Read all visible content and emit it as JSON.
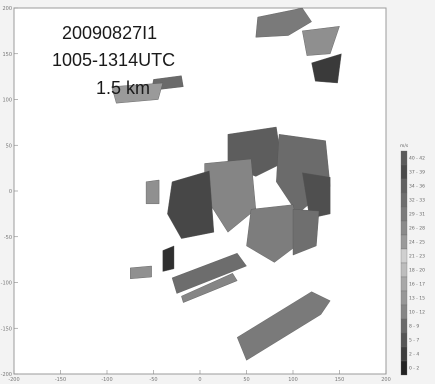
{
  "chart_data": {
    "type": "heatmap",
    "title_lines": [
      "20090827I1",
      "1005-1314UTC",
      "1.5 km"
    ],
    "xlim": [
      -200,
      200
    ],
    "ylim": [
      -200,
      200
    ],
    "x_ticks": [
      -200,
      -150,
      -100,
      -50,
      0,
      50,
      100,
      150,
      200
    ],
    "y_ticks": [
      200,
      150,
      100,
      50,
      0,
      -50,
      -100,
      -150,
      -200
    ],
    "colorbar": {
      "unit": "m/s",
      "levels": [
        "40 - 42",
        "37 - 39",
        "34 - 36",
        "32 - 33",
        "29 - 31",
        "26 - 28",
        "24 - 25",
        "21 - 23",
        "18 - 20",
        "16 - 17",
        "13 - 15",
        "10 - 12",
        "8 - 9",
        "5 - 7",
        "2 - 4",
        "0 - 2"
      ],
      "colors": [
        "#5a5a5a",
        "#4a4a4a",
        "#616161",
        "#6e6e6e",
        "#7b7b7b",
        "#8a8a8a",
        "#9a9a9a",
        "#cfcfcf",
        "#bdbdbd",
        "#a8a8a8",
        "#979797",
        "#868686",
        "#6a6a6a",
        "#555555",
        "#3d3d3d",
        "#222222"
      ]
    },
    "grid": false
  },
  "patches": [
    {
      "color": "#7a7a7a",
      "pts": [
        [
          62,
          190
        ],
        [
          110,
          200
        ],
        [
          120,
          185
        ],
        [
          95,
          170
        ],
        [
          60,
          168
        ]
      ]
    },
    {
      "color": "#8f8f8f",
      "pts": [
        [
          110,
          175
        ],
        [
          150,
          180
        ],
        [
          140,
          150
        ],
        [
          115,
          148
        ]
      ]
    },
    {
      "color": "#3a3a3a",
      "pts": [
        [
          120,
          140
        ],
        [
          152,
          150
        ],
        [
          148,
          118
        ],
        [
          124,
          120
        ]
      ]
    },
    {
      "color": "#6a6a6a",
      "pts": [
        [
          -50,
          122
        ],
        [
          -20,
          126
        ],
        [
          -18,
          114
        ],
        [
          -52,
          110
        ]
      ]
    },
    {
      "color": "#9a9a9a",
      "pts": [
        [
          -95,
          114
        ],
        [
          -40,
          118
        ],
        [
          -45,
          100
        ],
        [
          -90,
          96
        ]
      ]
    },
    {
      "color": "#5d5d5d",
      "pts": [
        [
          30,
          62
        ],
        [
          82,
          70
        ],
        [
          88,
          30
        ],
        [
          60,
          16
        ],
        [
          30,
          28
        ]
      ]
    },
    {
      "color": "#6b6b6b",
      "pts": [
        [
          85,
          62
        ],
        [
          135,
          55
        ],
        [
          140,
          5
        ],
        [
          105,
          -25
        ],
        [
          82,
          10
        ]
      ]
    },
    {
      "color": "#4f4f4f",
      "pts": [
        [
          110,
          20
        ],
        [
          140,
          15
        ],
        [
          140,
          -25
        ],
        [
          118,
          -30
        ]
      ]
    },
    {
      "color": "#858585",
      "pts": [
        [
          5,
          30
        ],
        [
          55,
          35
        ],
        [
          60,
          -20
        ],
        [
          30,
          -45
        ],
        [
          5,
          -5
        ]
      ]
    },
    {
      "color": "#474747",
      "pts": [
        [
          -30,
          10
        ],
        [
          10,
          22
        ],
        [
          15,
          -45
        ],
        [
          -20,
          -52
        ],
        [
          -35,
          -25
        ]
      ]
    },
    {
      "color": "#7d7d7d",
      "pts": [
        [
          55,
          -20
        ],
        [
          100,
          -15
        ],
        [
          110,
          -55
        ],
        [
          80,
          -78
        ],
        [
          50,
          -60
        ]
      ]
    },
    {
      "color": "#6f6f6f",
      "pts": [
        [
          100,
          -20
        ],
        [
          128,
          -22
        ],
        [
          125,
          -60
        ],
        [
          100,
          -70
        ]
      ]
    },
    {
      "color": "#2f2f2f",
      "pts": [
        [
          -40,
          -65
        ],
        [
          -28,
          -60
        ],
        [
          -28,
          -85
        ],
        [
          -40,
          -88
        ]
      ]
    },
    {
      "color": "#909090",
      "pts": [
        [
          -58,
          10
        ],
        [
          -44,
          12
        ],
        [
          -44,
          -14
        ],
        [
          -58,
          -14
        ]
      ]
    },
    {
      "color": "#909090",
      "pts": [
        [
          -75,
          -84
        ],
        [
          -52,
          -82
        ],
        [
          -52,
          -94
        ],
        [
          -75,
          -96
        ]
      ]
    },
    {
      "color": "#6d6d6d",
      "pts": [
        [
          -30,
          -95
        ],
        [
          40,
          -68
        ],
        [
          50,
          -82
        ],
        [
          -25,
          -112
        ]
      ]
    },
    {
      "color": "#858585",
      "pts": [
        [
          -20,
          -115
        ],
        [
          35,
          -90
        ],
        [
          40,
          -98
        ],
        [
          -18,
          -122
        ]
      ]
    },
    {
      "color": "#7a7a7a",
      "pts": [
        [
          40,
          -160
        ],
        [
          120,
          -110
        ],
        [
          140,
          -120
        ],
        [
          130,
          -135
        ],
        [
          50,
          -185
        ]
      ]
    }
  ]
}
